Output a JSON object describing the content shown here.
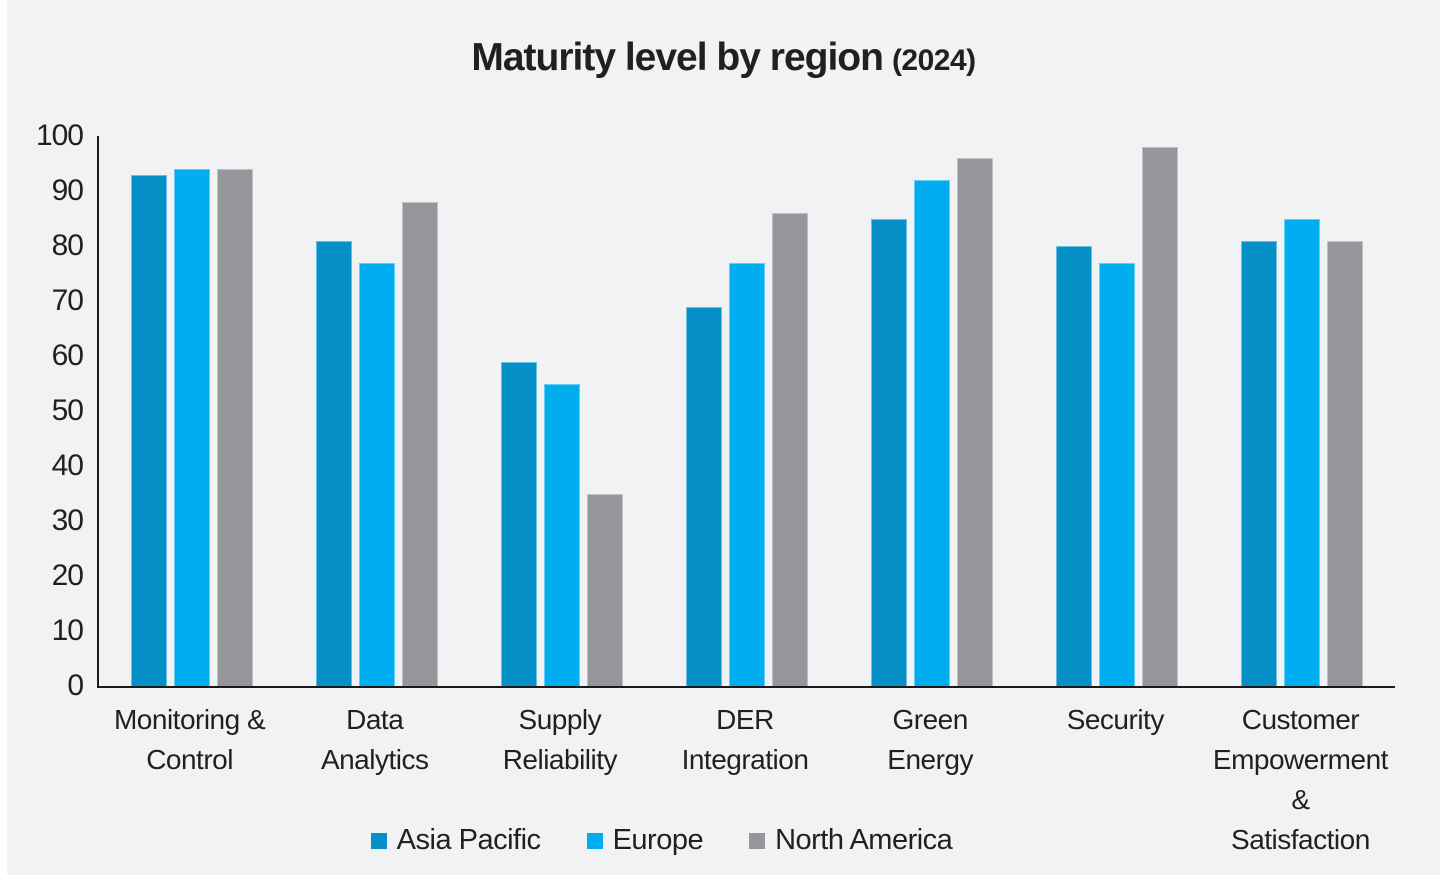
{
  "header": {
    "title_main": "Maturity level by region",
    "title_suffix": "(2024)"
  },
  "colors": {
    "panel_background": "#f1f2f4",
    "page_margin": "#ffffff",
    "axis": "#1a1a1a",
    "text": "#231f20",
    "asia_pacific": "#0591c8",
    "europe": "#00aeef",
    "north_america": "#95969a"
  },
  "chart_data": {
    "type": "bar",
    "title": "Maturity level by region (2024)",
    "xlabel": "",
    "ylabel": "",
    "ylim": [
      0,
      100
    ],
    "yticks": [
      0,
      10,
      20,
      30,
      40,
      50,
      60,
      70,
      80,
      90,
      100
    ],
    "grid": false,
    "legend_position": "bottom",
    "categories": [
      "Monitoring &\nControl",
      "Data\nAnalytics",
      "Supply\nReliability",
      "DER\nIntegration",
      "Green\nEnergy",
      "Security",
      "Customer\nEmpowerment &\nSatisfaction"
    ],
    "series": [
      {
        "name": "Asia Pacific",
        "color": "#0591c8",
        "values": [
          93,
          81,
          59,
          69,
          85,
          80,
          81
        ]
      },
      {
        "name": "Europe",
        "color": "#00aeef",
        "values": [
          94,
          77,
          55,
          77,
          92,
          77,
          85
        ]
      },
      {
        "name": "North America",
        "color": "#95969a",
        "values": [
          94,
          88,
          35,
          86,
          96,
          98,
          81
        ]
      }
    ]
  }
}
